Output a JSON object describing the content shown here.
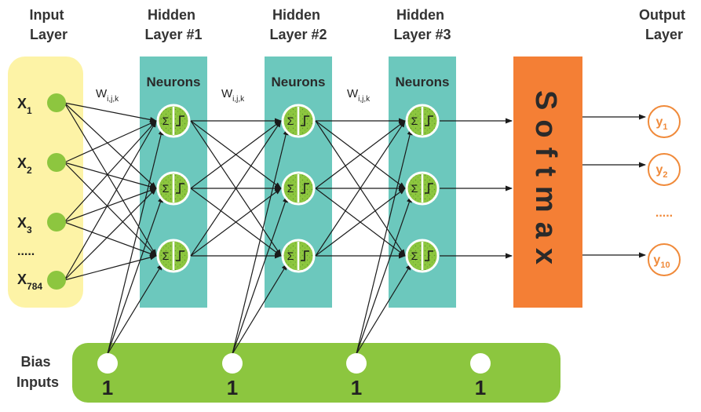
{
  "headers": {
    "input": [
      "Input",
      "Layer"
    ],
    "hidden1": [
      "Hidden",
      "Layer #1"
    ],
    "hidden2": [
      "Hidden",
      "Layer #2"
    ],
    "hidden3": [
      "Hidden",
      "Layer #3"
    ],
    "output": [
      "Output",
      "Layer"
    ]
  },
  "neurons_label": "Neurons",
  "weight_label": {
    "main": "W",
    "sub": "i,j,k"
  },
  "inputs": [
    {
      "main": "X",
      "sub": "1"
    },
    {
      "main": "X",
      "sub": "2"
    },
    {
      "main": "X",
      "sub": "3"
    },
    {
      "main": "X",
      "sub": "784"
    }
  ],
  "input_ellipsis": ".....",
  "softmax_label": "Softmax",
  "outputs": [
    {
      "main": "y",
      "sub": "1"
    },
    {
      "main": "y",
      "sub": "2"
    },
    {
      "main": "y",
      "sub": "10"
    }
  ],
  "output_ellipsis": ".....",
  "bias": {
    "title": [
      "Bias",
      "Inputs"
    ],
    "value": "1"
  },
  "neuron_symbols": {
    "sum": "Σ"
  },
  "colors": {
    "input_panel": "#fdf3a6",
    "hidden_panel": "#6cc8bd",
    "softmax": "#f47f35",
    "node_green": "#8dc63f",
    "bias_panel": "#8cc63f",
    "output_orange": "#f08a3a",
    "arrow": "#1a1a1a"
  }
}
